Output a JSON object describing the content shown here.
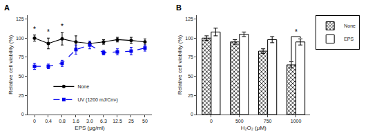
{
  "chart_data": [
    {
      "type": "line",
      "title": "A",
      "xlabel": "EPS (μg/ml)",
      "ylabel": "Relative cell viability (%)",
      "categories": [
        "0",
        "0.4",
        "0.8",
        "1.6",
        "3.0",
        "6.3",
        "12.5",
        "25",
        "50"
      ],
      "series": [
        {
          "name": "None",
          "color": "#000000",
          "marker": "circle",
          "line_style": "solid",
          "values": [
            100,
            93,
            99,
            95,
            93,
            95,
            98,
            97,
            95
          ],
          "errors": [
            4,
            7,
            8,
            8,
            3,
            3,
            3,
            4,
            4
          ]
        },
        {
          "name": "UV (1200 mJ/Cm²)",
          "color": "#0000ee",
          "marker": "square",
          "line_style": "dashed",
          "values": [
            63,
            63,
            67,
            85,
            91,
            81,
            82,
            83,
            87
          ],
          "errors": [
            4,
            3,
            4,
            6,
            5,
            3,
            4,
            5,
            4
          ]
        }
      ],
      "annotations": [
        {
          "text": "*",
          "x": "0",
          "series": [
            "None"
          ]
        },
        {
          "text": "*",
          "x": "0.4",
          "series": [
            "None"
          ]
        },
        {
          "text": "*",
          "x": "0.8",
          "series": [
            "None"
          ]
        }
      ],
      "ylim": [
        0,
        130
      ],
      "yticks": [
        0,
        25,
        50,
        75,
        100,
        125
      ],
      "grid": false,
      "legend": "lower left"
    },
    {
      "type": "bar",
      "title": "B",
      "xlabel": "H₂O₂ (μM)",
      "ylabel": "Relative cell viability (%)",
      "categories": [
        "0",
        "500",
        "750",
        "1000"
      ],
      "series": [
        {
          "name": "None",
          "color": "#ffffff",
          "marker": "crosshatch",
          "values": [
            100,
            95,
            83,
            65
          ],
          "errors": [
            3,
            3,
            3,
            4
          ]
        },
        {
          "name": "EPS",
          "color": "#ffffff",
          "marker": "plain",
          "values": [
            108,
            105,
            98,
            95
          ],
          "errors": [
            5,
            3,
            4,
            4
          ]
        }
      ],
      "annotations": [
        {
          "text": "*",
          "x": "1000",
          "series": [
            "None",
            "EPS"
          ]
        }
      ],
      "ylim": [
        0,
        130
      ],
      "yticks": [
        0,
        25,
        50,
        75,
        100,
        125
      ],
      "grid": false,
      "legend": "upper right"
    }
  ]
}
